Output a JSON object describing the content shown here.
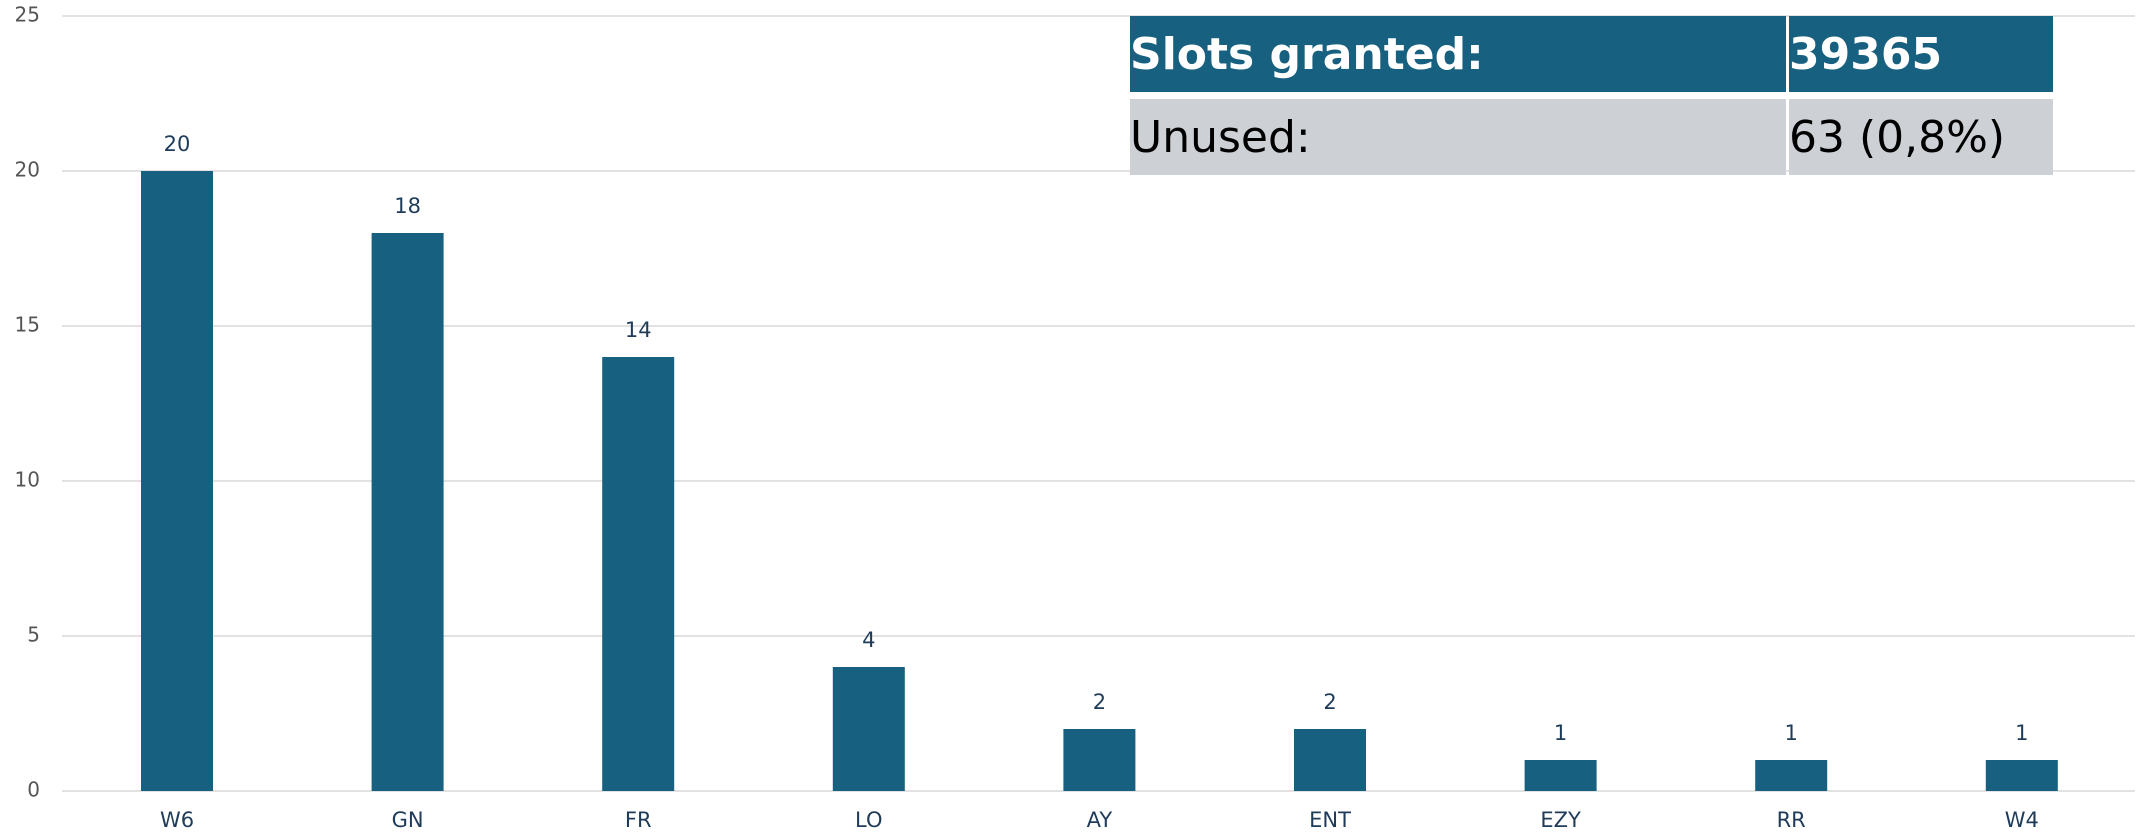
{
  "chart_data": {
    "type": "bar",
    "categories": [
      "W6",
      "GN",
      "FR",
      "LO",
      "AY",
      "ENT",
      "EZY",
      "RR",
      "W4"
    ],
    "values": [
      20,
      18,
      14,
      4,
      2,
      2,
      1,
      1,
      1
    ],
    "color": "#17607f",
    "ylim": [
      0,
      25
    ],
    "yticks": [
      0,
      5,
      10,
      15,
      20,
      25
    ],
    "grid": true,
    "table": {
      "rows": [
        [
          "Slots granted:",
          "39365"
        ],
        [
          "Unused:",
          "63 (0,8%)"
        ]
      ]
    }
  }
}
